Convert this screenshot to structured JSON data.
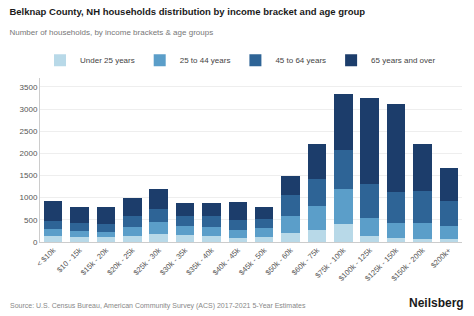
{
  "chart_data": {
    "type": "bar",
    "stacked": true,
    "title": "Belknap County, NH households distribution by income bracket and age group",
    "subtitle": "Number of households, by income brackets & age groups",
    "annotations": [
      "Source: U.S. Census Bureau, American Community Survey (ACS) 2017-2021 5-Year Estimates",
      "Neilsberg"
    ],
    "categories": [
      "< $10k",
      "$10 - 15k",
      "$15k - 20k",
      "$20k - 25k",
      "$25k - 30k",
      "$30k - 35k",
      "$35k - 40k",
      "$40k - 45k",
      "$45k - 50k",
      "$50k - 60k",
      "$60k - 75k",
      "$75k - 100k",
      "$100k - 125k",
      "$125k - 150k",
      "$150k - 200k",
      "$200k+"
    ],
    "series": [
      {
        "name": "Under 25 years",
        "color": "#b8d9e8",
        "values": [
          140,
          120,
          110,
          140,
          190,
          155,
          145,
          100,
          115,
          195,
          265,
          395,
          145,
          95,
          75,
          75
        ]
      },
      {
        "name": "25 to 44 years",
        "color": "#5b9ec9",
        "values": [
          145,
          125,
          125,
          195,
          265,
          195,
          195,
          175,
          195,
          395,
          545,
          795,
          395,
          345,
          345,
          295
        ]
      },
      {
        "name": "45 to 64 years",
        "color": "#2e6496",
        "values": [
          195,
          175,
          175,
          245,
          295,
          245,
          245,
          225,
          215,
          475,
          615,
          895,
          775,
          695,
          725,
          545
        ]
      },
      {
        "name": "65 years and over",
        "color": "#1c3d6b",
        "values": [
          455,
          360,
          370,
          405,
          435,
          285,
          305,
          400,
          255,
          430,
          785,
          1255,
          1945,
          1975,
          1055,
          765
        ]
      }
    ],
    "ylim": [
      0,
      3700
    ],
    "yticks": [
      0,
      500,
      1000,
      1500,
      2000,
      2500,
      3000,
      3500
    ],
    "grid": true,
    "legend": "top left"
  }
}
